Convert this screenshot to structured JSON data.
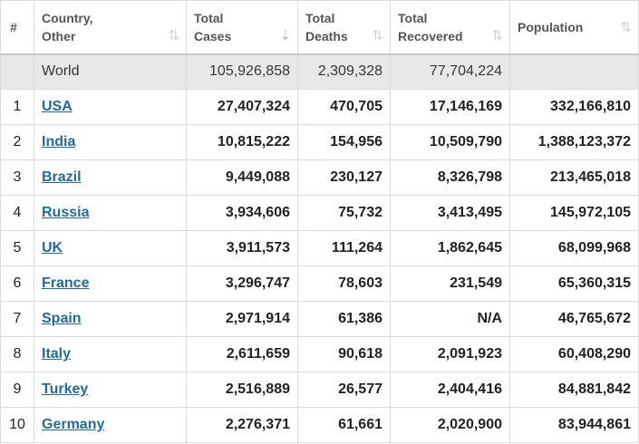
{
  "header": {
    "index": "#",
    "country": [
      "Country,",
      "Other"
    ],
    "total_cases": [
      "Total",
      "Cases"
    ],
    "total_deaths": [
      "Total",
      "Deaths"
    ],
    "total_recovered": [
      "Total",
      "Recovered"
    ],
    "population": "Population",
    "sort_icon": "⇅",
    "sort_icon_active": "⇣"
  },
  "world": {
    "name": "World",
    "total_cases": "105,926,858",
    "total_deaths": "2,309,328",
    "total_recovered": "77,704,224",
    "population": ""
  },
  "rows": [
    {
      "index": "1",
      "country": "USA",
      "total_cases": "27,407,324",
      "total_deaths": "470,705",
      "total_recovered": "17,146,169",
      "population": "332,166,810"
    },
    {
      "index": "2",
      "country": "India",
      "total_cases": "10,815,222",
      "total_deaths": "154,956",
      "total_recovered": "10,509,790",
      "population": "1,388,123,372"
    },
    {
      "index": "3",
      "country": "Brazil",
      "total_cases": "9,449,088",
      "total_deaths": "230,127",
      "total_recovered": "8,326,798",
      "population": "213,465,018"
    },
    {
      "index": "4",
      "country": "Russia",
      "total_cases": "3,934,606",
      "total_deaths": "75,732",
      "total_recovered": "3,413,495",
      "population": "145,972,105"
    },
    {
      "index": "5",
      "country": "UK",
      "total_cases": "3,911,573",
      "total_deaths": "111,264",
      "total_recovered": "1,862,645",
      "population": "68,099,968"
    },
    {
      "index": "6",
      "country": "France",
      "total_cases": "3,296,747",
      "total_deaths": "78,603",
      "total_recovered": "231,549",
      "population": "65,360,315"
    },
    {
      "index": "7",
      "country": "Spain",
      "total_cases": "2,971,914",
      "total_deaths": "61,386",
      "total_recovered": "N/A",
      "population": "46,765,672"
    },
    {
      "index": "8",
      "country": "Italy",
      "total_cases": "2,611,659",
      "total_deaths": "90,618",
      "total_recovered": "2,091,923",
      "population": "60,408,290"
    },
    {
      "index": "9",
      "country": "Turkey",
      "total_cases": "2,516,889",
      "total_deaths": "26,577",
      "total_recovered": "2,404,416",
      "population": "84,881,842"
    },
    {
      "index": "10",
      "country": "Germany",
      "total_cases": "2,276,371",
      "total_deaths": "61,661",
      "total_recovered": "2,020,900",
      "population": "83,944,861"
    }
  ],
  "colors": {
    "link": "#246a9c",
    "population": "#2e7bb4",
    "world_row_bg": "#e8e8e8"
  }
}
